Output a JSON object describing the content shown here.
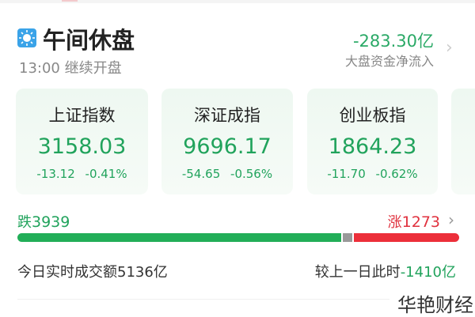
{
  "header": {
    "title": "午间休盘",
    "subtitle": "13:00 继续开盘",
    "icon": "sun-icon",
    "net_flow": "-283.30亿",
    "net_flow_label": "大盘资金净流入"
  },
  "indices": [
    {
      "name": "上证指数",
      "value": "3158.03",
      "change": "-13.12",
      "pct": "-0.41%"
    },
    {
      "name": "深证成指",
      "value": "9696.17",
      "change": "-54.65",
      "pct": "-0.56%"
    },
    {
      "name": "创业板指",
      "value": "1864.23",
      "change": "-11.70",
      "pct": "-0.62%"
    }
  ],
  "breadth": {
    "down_label": "跌",
    "down": "3939",
    "up_label": "涨",
    "up": "1273",
    "down_color": "#22ae58",
    "flat_color": "#999999",
    "up_color": "#ec2f3a"
  },
  "turnover": {
    "label": "今日实时成交额5136亿",
    "compare_label": "较上一日此时",
    "compare_value": "-1410亿"
  },
  "watermark": "华艳财经"
}
